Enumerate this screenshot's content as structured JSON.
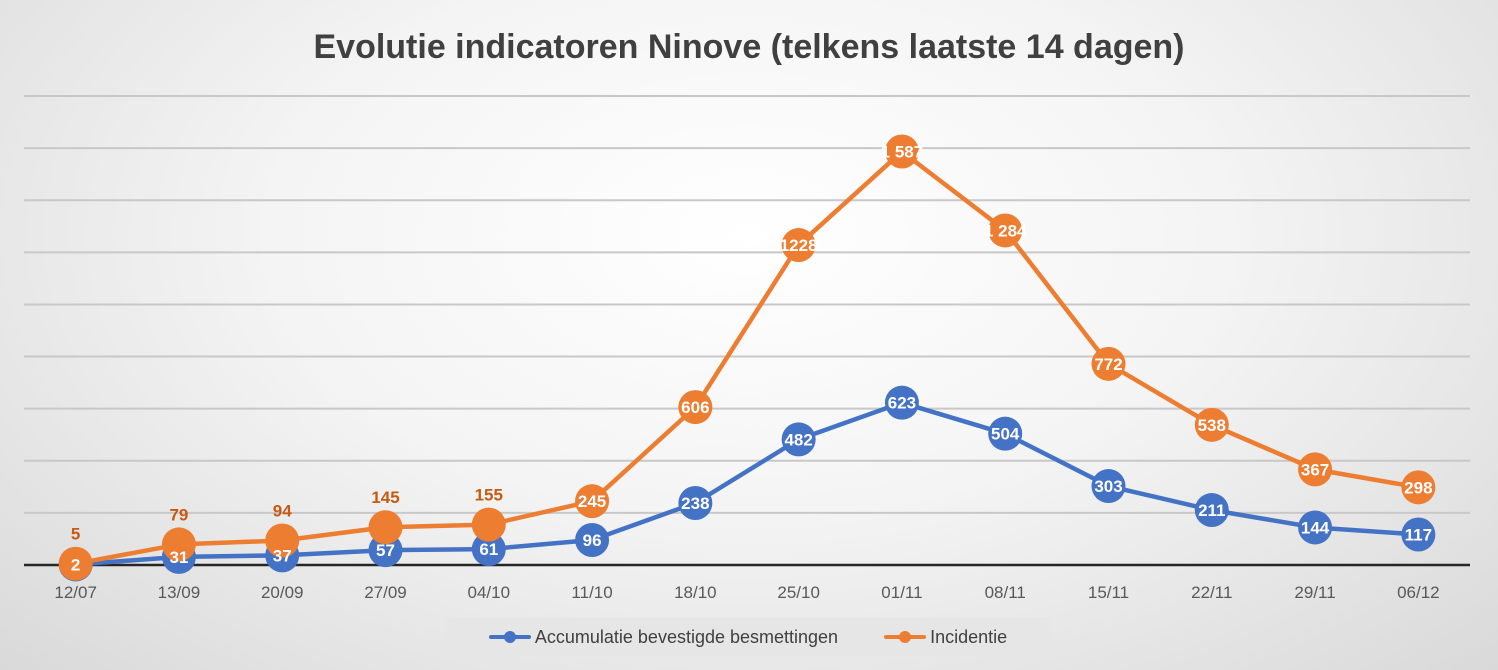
{
  "chart_data": {
    "type": "line",
    "title": "Evolutie indicatoren Ninove (telkens laatste 14 dagen)",
    "xlabel": "",
    "ylabel": "",
    "ylim": [
      0,
      1800
    ],
    "grid": true,
    "y_gridline_step": 200,
    "legend_position": "bottom",
    "categories": [
      "12/07",
      "13/09",
      "20/09",
      "27/09",
      "04/10",
      "11/10",
      "18/10",
      "25/10",
      "01/11",
      "08/11",
      "15/11",
      "22/11",
      "29/11",
      "06/12"
    ],
    "series": [
      {
        "name": "Accumulatie bevestigde besmettingen",
        "color": "#4472c4",
        "values": [
          2,
          31,
          37,
          57,
          61,
          96,
          238,
          482,
          623,
          504,
          303,
          211,
          144,
          117
        ],
        "labels": [
          "2",
          "31",
          "37",
          "57",
          "61",
          "96",
          "238",
          "482",
          "623",
          "504",
          "303",
          "211",
          "144",
          "117"
        ]
      },
      {
        "name": "Incidentie",
        "color": "#ed7d31",
        "values": [
          5,
          79,
          94,
          145,
          155,
          245,
          606,
          1228,
          1587,
          1284,
          772,
          538,
          367,
          298
        ],
        "labels": [
          "5",
          "79",
          "94",
          "145",
          "155",
          "245",
          "606",
          "1228",
          "1 587",
          "1 284",
          "772",
          "538",
          "367",
          "298"
        ]
      }
    ]
  }
}
